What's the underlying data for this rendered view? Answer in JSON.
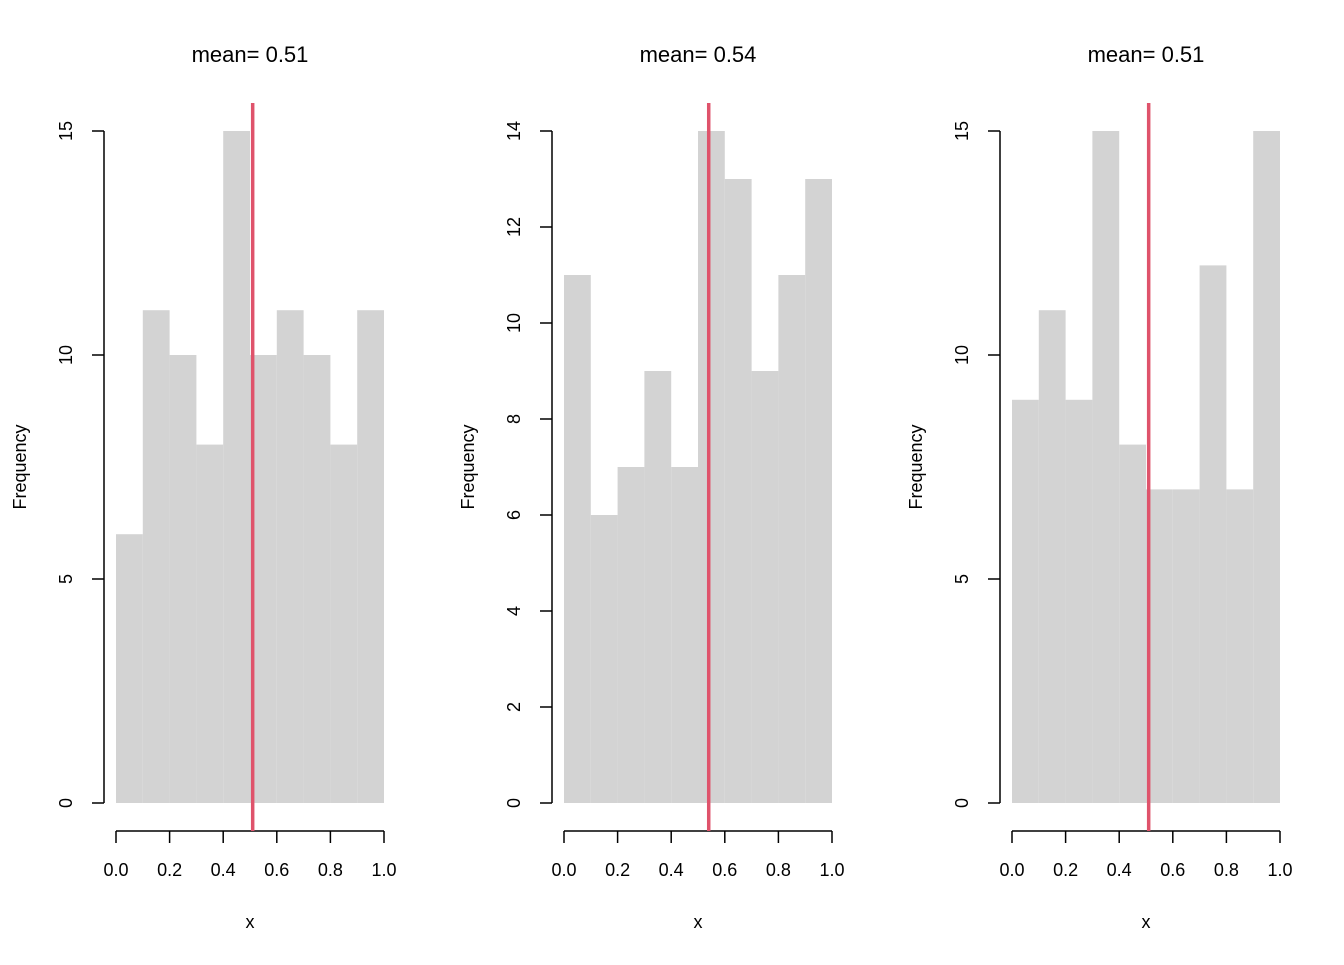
{
  "colors": {
    "bar_fill": "#d3d3d3",
    "mean_line": "#df536b",
    "axis": "#000000",
    "background": "#ffffff"
  },
  "chart_data": [
    {
      "type": "bar",
      "subtype": "histogram",
      "title": "mean= 0.51",
      "xlabel": "x",
      "ylabel": "Frequency",
      "bin_edges": [
        0.0,
        0.1,
        0.2,
        0.3,
        0.4,
        0.5,
        0.6,
        0.7,
        0.8,
        0.9,
        1.0
      ],
      "values": [
        6,
        11,
        10,
        8,
        15,
        10,
        11,
        10,
        8,
        11
      ],
      "mean": 0.51,
      "xlim": [
        0.0,
        1.0
      ],
      "ylim": [
        0,
        15
      ],
      "x_ticks": [
        "0.0",
        "0.2",
        "0.4",
        "0.6",
        "0.8",
        "1.0"
      ],
      "y_ticks": [
        "0",
        "5",
        "10",
        "15"
      ],
      "grid": false,
      "legend": "none"
    },
    {
      "type": "bar",
      "subtype": "histogram",
      "title": "mean= 0.54",
      "xlabel": "x",
      "ylabel": "Frequency",
      "bin_edges": [
        0.0,
        0.1,
        0.2,
        0.3,
        0.4,
        0.5,
        0.6,
        0.7,
        0.8,
        0.9,
        1.0
      ],
      "values": [
        11,
        6,
        7,
        9,
        7,
        14,
        13,
        9,
        11,
        13
      ],
      "mean": 0.54,
      "xlim": [
        0.0,
        1.0
      ],
      "ylim": [
        0,
        14
      ],
      "x_ticks": [
        "0.0",
        "0.2",
        "0.4",
        "0.6",
        "0.8",
        "1.0"
      ],
      "y_ticks": [
        "0",
        "2",
        "4",
        "6",
        "8",
        "10",
        "12",
        "14"
      ],
      "grid": false,
      "legend": "none"
    },
    {
      "type": "bar",
      "subtype": "histogram",
      "title": "mean= 0.51",
      "xlabel": "x",
      "ylabel": "Frequency",
      "bin_edges": [
        0.0,
        0.1,
        0.2,
        0.3,
        0.4,
        0.5,
        0.6,
        0.7,
        0.8,
        0.9,
        1.0
      ],
      "values": [
        9,
        11,
        9,
        15,
        8,
        7,
        7,
        12,
        7,
        15
      ],
      "mean": 0.51,
      "xlim": [
        0.0,
        1.0
      ],
      "ylim": [
        0,
        15
      ],
      "x_ticks": [
        "0.0",
        "0.2",
        "0.4",
        "0.6",
        "0.8",
        "1.0"
      ],
      "y_ticks": [
        "0",
        "5",
        "10",
        "15"
      ],
      "grid": false,
      "legend": "none"
    }
  ]
}
